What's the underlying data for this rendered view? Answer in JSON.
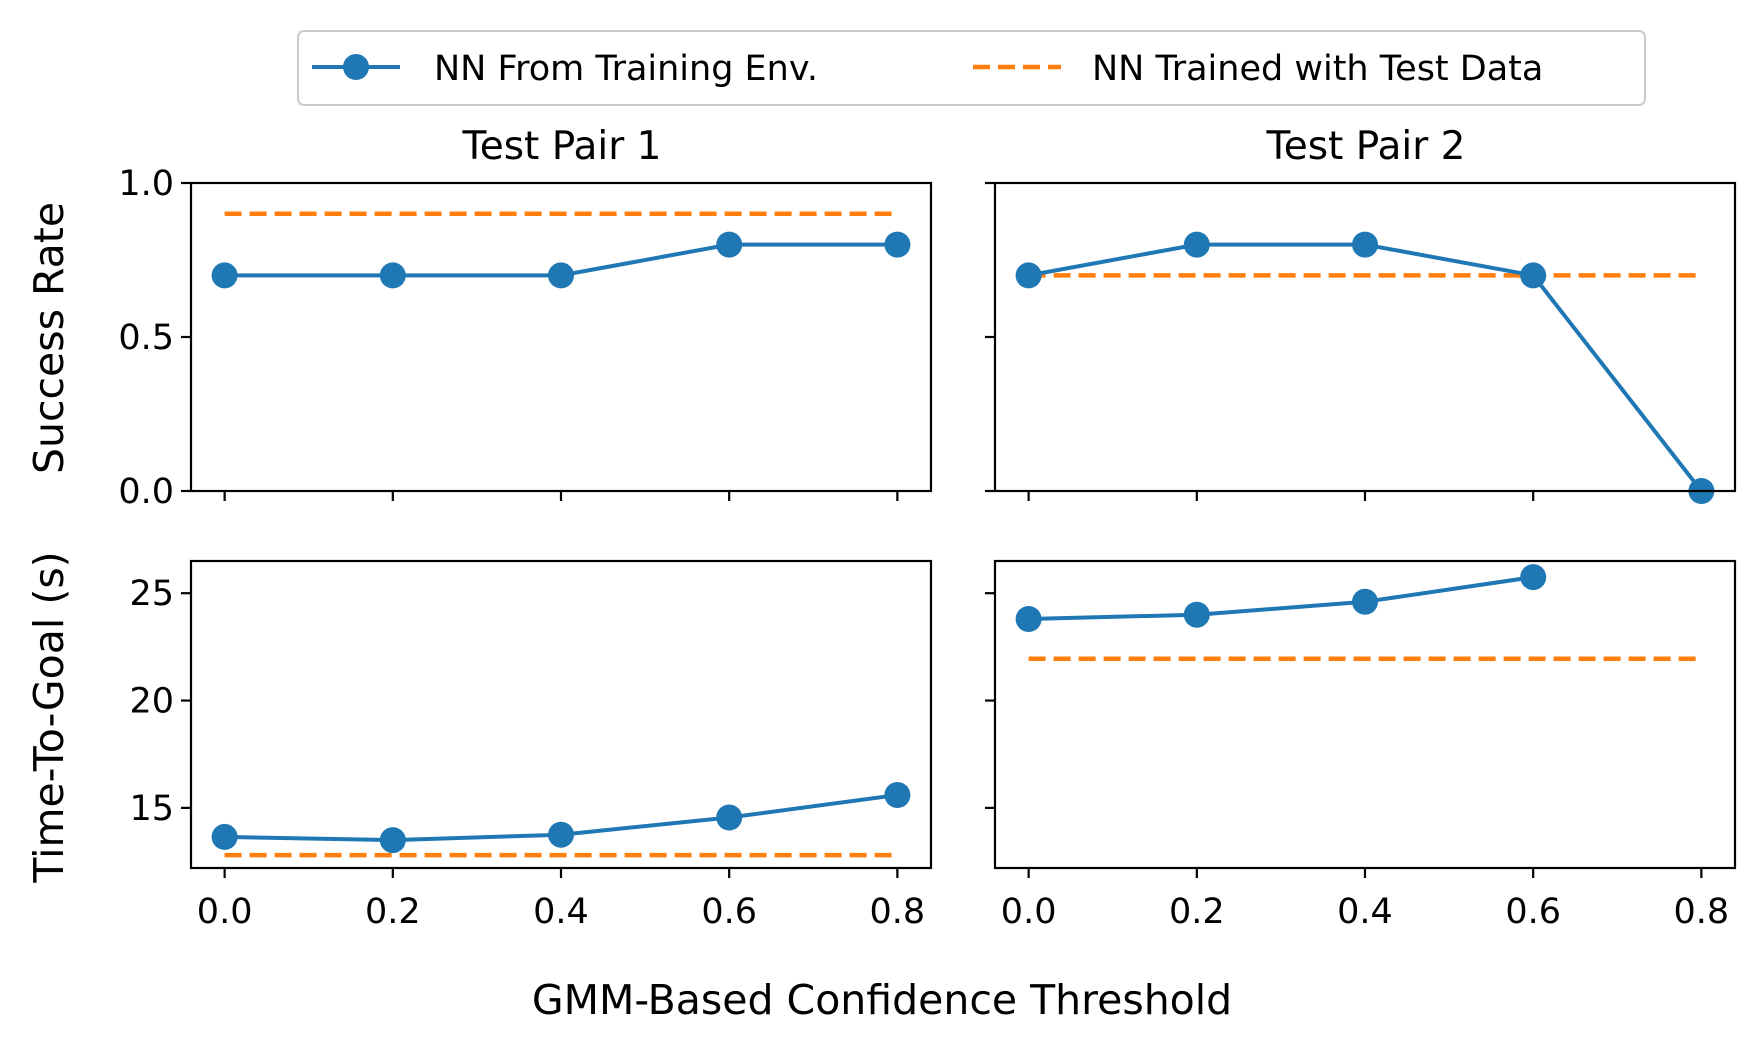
{
  "chart_data": {
    "type": "line",
    "xlabel": "GMM-Based Confidence Threshold",
    "legend": {
      "placement": "top-center",
      "entries": [
        {
          "label": "NN From Training Env.",
          "color": "#1f77b4",
          "style": "solid-marker"
        },
        {
          "label": "NN Trained with Test Data",
          "color": "#ff7f0e",
          "style": "dashed"
        }
      ]
    },
    "x": [
      0.0,
      0.2,
      0.4,
      0.6,
      0.8
    ],
    "xticks": [
      "0.0",
      "0.2",
      "0.4",
      "0.6",
      "0.8"
    ],
    "rows": [
      {
        "ylabel": "Success Rate",
        "yticks": [
          "0.0",
          "0.5",
          "1.0"
        ],
        "ylim": [
          0,
          1
        ]
      },
      {
        "ylabel": "Time-To-Goal (s)",
        "yticks": [
          "15",
          "20",
          "25"
        ],
        "ylim": [
          12.2,
          26.5
        ]
      }
    ],
    "panels": [
      {
        "title": "Test Pair 1",
        "metric": "Success Rate",
        "series": [
          {
            "name": "NN From Training Env.",
            "values": [
              0.7,
              0.7,
              0.7,
              0.8,
              0.8
            ]
          },
          {
            "name": "NN Trained with Test Data",
            "values": [
              0.9,
              0.9,
              0.9,
              0.9,
              0.9
            ]
          }
        ]
      },
      {
        "title": "Test Pair 2",
        "metric": "Success Rate",
        "series": [
          {
            "name": "NN From Training Env.",
            "values": [
              0.7,
              0.8,
              0.8,
              0.7,
              0.0
            ]
          },
          {
            "name": "NN Trained with Test Data",
            "values": [
              0.7,
              0.7,
              0.7,
              0.7,
              0.7
            ]
          }
        ]
      },
      {
        "title": "",
        "metric": "Time-To-Goal (s)",
        "series": [
          {
            "name": "NN From Training Env.",
            "values": [
              13.65,
              13.5,
              13.75,
              14.55,
              15.6
            ]
          },
          {
            "name": "NN Trained with Test Data",
            "values": [
              12.8,
              12.8,
              12.8,
              12.8,
              12.8
            ]
          }
        ]
      },
      {
        "title": "",
        "metric": "Time-To-Goal (s)",
        "series": [
          {
            "name": "NN From Training Env.",
            "values": [
              23.8,
              24.0,
              24.6,
              25.75,
              null
            ]
          },
          {
            "name": "NN Trained with Test Data",
            "values": [
              21.95,
              21.95,
              21.95,
              21.95,
              21.95
            ]
          }
        ]
      }
    ],
    "grid": false
  }
}
